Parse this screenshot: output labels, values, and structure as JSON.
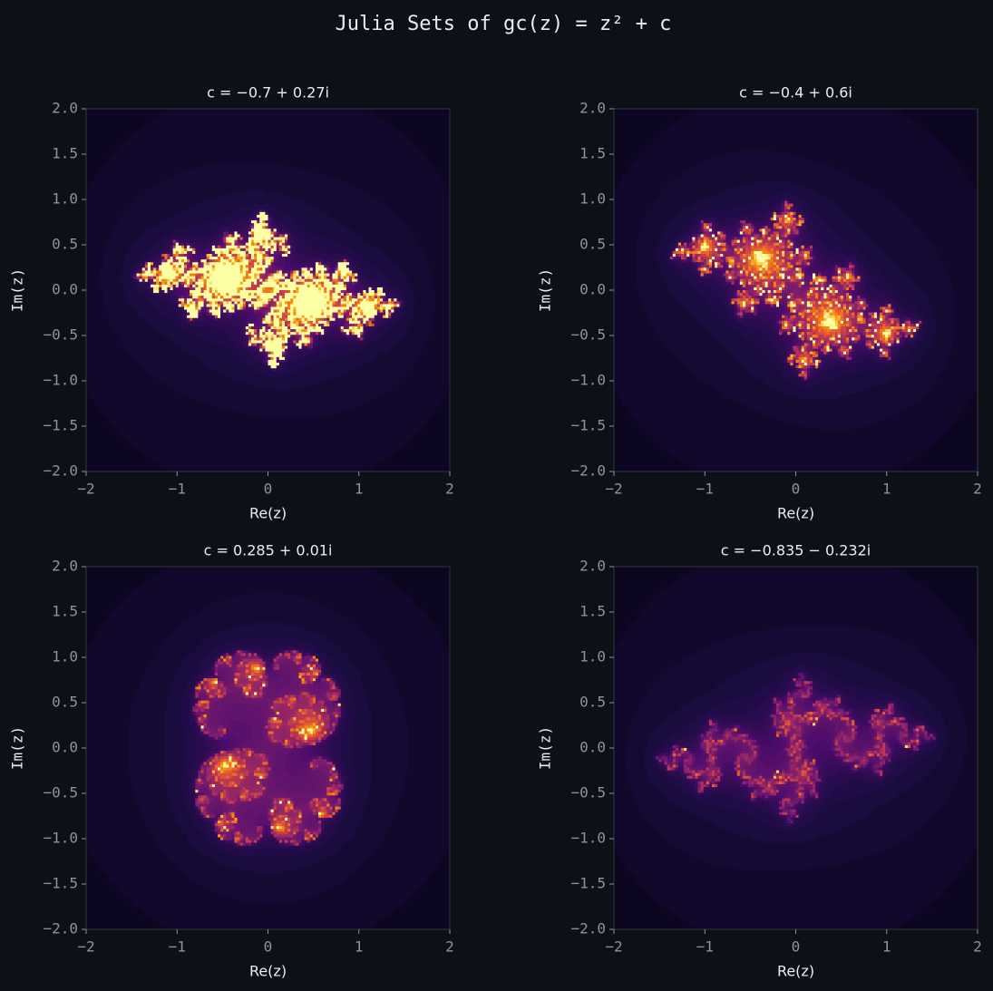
{
  "title": "Julia Sets of gc(z) = z² + c",
  "chart_data": [
    {
      "type": "julia",
      "title": "c = −0.7 + 0.27i",
      "c": [
        -0.7,
        0.27
      ],
      "colormap": "inferno",
      "xlabel": "Re(z)",
      "ylabel": "Im(z)",
      "xlim": [
        -2,
        2
      ],
      "ylim": [
        -2,
        2
      ],
      "xticks": [
        {
          "value": -2,
          "label": "−2"
        },
        {
          "value": -1,
          "label": "−1"
        },
        0,
        1,
        2
      ],
      "yticks": [
        {
          "value": -2,
          "label": "−2.0"
        },
        {
          "value": -1.5,
          "label": "−1.5"
        },
        {
          "value": -1,
          "label": "−1.0"
        },
        {
          "value": -0.5,
          "label": "−0.5"
        },
        {
          "value": 0,
          "label": "0.0"
        },
        0.5,
        {
          "value": 1,
          "label": "1.0"
        },
        1.5,
        {
          "value": 2,
          "label": "2.0"
        }
      ]
    },
    {
      "type": "julia",
      "title": "c = −0.4 + 0.6i",
      "c": [
        -0.4,
        0.6
      ],
      "colormap": "inferno",
      "xlabel": "Re(z)",
      "ylabel": "Im(z)",
      "xlim": [
        -2,
        2
      ],
      "ylim": [
        -2,
        2
      ],
      "xticks": [
        {
          "value": -2,
          "label": "−2"
        },
        {
          "value": -1,
          "label": "−1"
        },
        0,
        1,
        2
      ],
      "yticks": [
        {
          "value": -2,
          "label": "−2.0"
        },
        {
          "value": -1.5,
          "label": "−1.5"
        },
        {
          "value": -1,
          "label": "−1.0"
        },
        {
          "value": -0.5,
          "label": "−0.5"
        },
        {
          "value": 0,
          "label": "0.0"
        },
        0.5,
        {
          "value": 1,
          "label": "1.0"
        },
        1.5,
        {
          "value": 2,
          "label": "2.0"
        }
      ]
    },
    {
      "type": "julia",
      "title": "c = 0.285 + 0.01i",
      "c": [
        0.285,
        0.01
      ],
      "colormap": "inferno",
      "xlabel": "Re(z)",
      "ylabel": "Im(z)",
      "xlim": [
        -2,
        2
      ],
      "ylim": [
        -2,
        2
      ],
      "xticks": [
        {
          "value": -2,
          "label": "−2"
        },
        {
          "value": -1,
          "label": "−1"
        },
        0,
        1,
        2
      ],
      "yticks": [
        {
          "value": -2,
          "label": "−2.0"
        },
        {
          "value": -1.5,
          "label": "−1.5"
        },
        {
          "value": -1,
          "label": "−1.0"
        },
        {
          "value": -0.5,
          "label": "−0.5"
        },
        {
          "value": 0,
          "label": "0.0"
        },
        0.5,
        {
          "value": 1,
          "label": "1.0"
        },
        1.5,
        {
          "value": 2,
          "label": "2.0"
        }
      ]
    },
    {
      "type": "julia",
      "title": "c = −0.835 − 0.232i",
      "c": [
        -0.835,
        -0.232
      ],
      "colormap": "inferno",
      "xlabel": "Re(z)",
      "ylabel": "Im(z)",
      "xlim": [
        -2,
        2
      ],
      "ylim": [
        -2,
        2
      ],
      "xticks": [
        {
          "value": -2,
          "label": "−2"
        },
        {
          "value": -1,
          "label": "−1"
        },
        0,
        1,
        2
      ],
      "yticks": [
        {
          "value": -2,
          "label": "−2.0"
        },
        {
          "value": -1.5,
          "label": "−1.5"
        },
        {
          "value": -1,
          "label": "−1.0"
        },
        {
          "value": -0.5,
          "label": "−0.5"
        },
        {
          "value": 0,
          "label": "0.0"
        },
        0.5,
        {
          "value": 1,
          "label": "1.0"
        },
        1.5,
        {
          "value": 2,
          "label": "2.0"
        }
      ]
    }
  ]
}
